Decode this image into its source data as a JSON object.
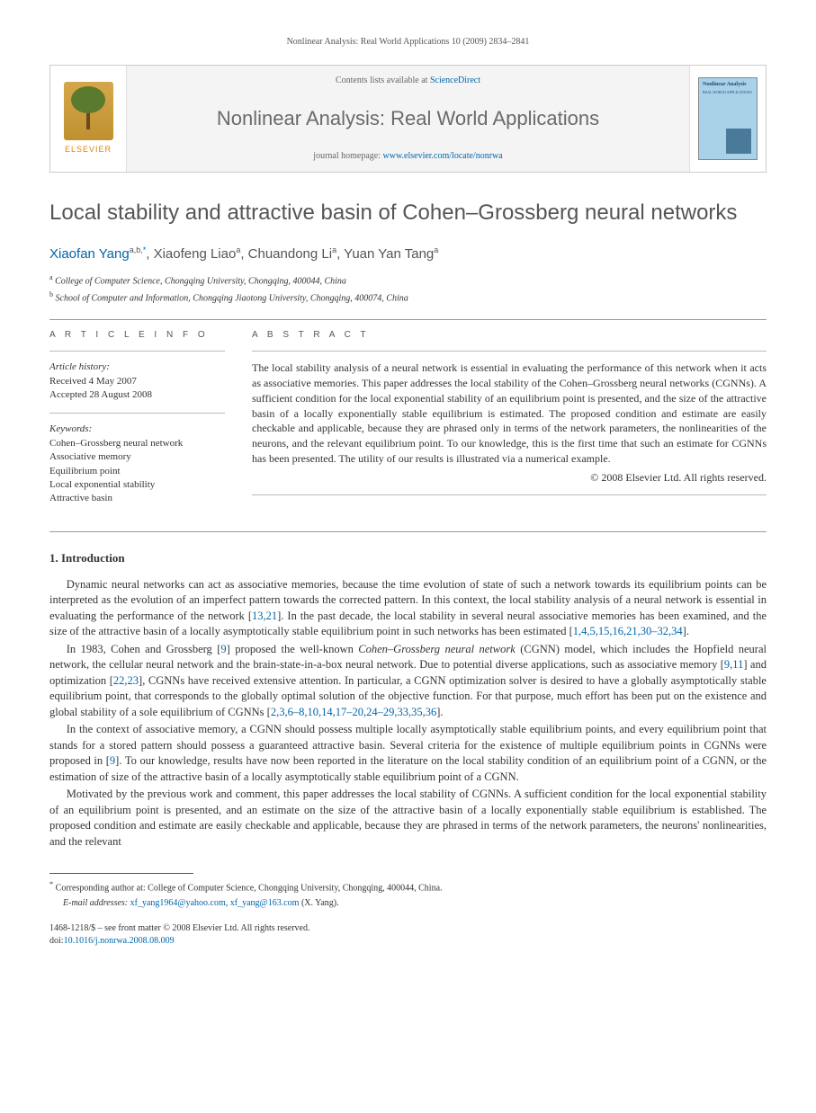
{
  "header": {
    "citation": "Nonlinear Analysis: Real World Applications 10 (2009) 2834–2841"
  },
  "banner": {
    "contents_prefix": "Contents lists available at ",
    "contents_link": "ScienceDirect",
    "journal": "Nonlinear Analysis: Real World Applications",
    "homepage_prefix": "journal homepage: ",
    "homepage_url": "www.elsevier.com/locate/nonrwa",
    "publisher_logo_text": "ELSEVIER",
    "cover_title": "Nonlinear Analysis",
    "cover_sub": "REAL WORLD APPLICATIONS"
  },
  "article": {
    "title": "Local stability and attractive basin of Cohen–Grossberg neural networks",
    "authors_html": "Xiaofan Yang",
    "author1_sup": "a,b,",
    "author1_star": "*",
    "author2": ", Xiaofeng Liao",
    "author2_sup": "a",
    "author3": ", Chuandong Li",
    "author3_sup": "a",
    "author4": ", Yuan Yan Tang",
    "author4_sup": "a",
    "affiliations": [
      {
        "sup": "a",
        "text": " College of Computer Science, Chongqing University, Chongqing, 400044, China"
      },
      {
        "sup": "b",
        "text": " School of Computer and Information, Chongqing Jiaotong University, Chongqing, 400074, China"
      }
    ]
  },
  "info": {
    "heading": "A R T I C L E   I N F O",
    "history_label": "Article history:",
    "received": "Received 4 May 2007",
    "accepted": "Accepted 28 August 2008",
    "keywords_label": "Keywords:",
    "keywords": [
      "Cohen–Grossberg neural network",
      "Associative memory",
      "Equilibrium point",
      "Local exponential stability",
      "Attractive basin"
    ]
  },
  "abstract": {
    "heading": "A B S T R A C T",
    "text": "The local stability analysis of a neural network is essential in evaluating the performance of this network when it acts as associative memories. This paper addresses the local stability of the Cohen–Grossberg neural networks (CGNNs). A sufficient condition for the local exponential stability of an equilibrium point is presented, and the size of the attractive basin of a locally exponentially stable equilibrium is estimated. The proposed condition and estimate are easily checkable and applicable, because they are phrased only in terms of the network parameters, the nonlinearities of the neurons, and the relevant equilibrium point. To our knowledge, this is the first time that such an estimate for CGNNs has been presented. The utility of our results is illustrated via a numerical example.",
    "copyright": "© 2008 Elsevier Ltd. All rights reserved."
  },
  "body": {
    "section1_heading": "1.  Introduction",
    "p1a": "Dynamic neural networks can act as associative memories, because the time evolution of state of such a network towards its equilibrium points can be interpreted as the evolution of an imperfect pattern towards the corrected pattern. In this context, the local stability analysis of a neural network is essential in evaluating the performance of the network [",
    "p1_ref1": "13,21",
    "p1b": "]. In the past decade, the local stability in several neural associative memories has been examined, and the size of the attractive basin of a locally asymptotically stable equilibrium point in such networks has been estimated [",
    "p1_ref2": "1,4,5,15,16,21,30–32,34",
    "p1c": "].",
    "p2a": "In 1983, Cohen and Grossberg [",
    "p2_ref1": "9",
    "p2b": "] proposed the well-known ",
    "p2_em": "Cohen–Grossberg neural network",
    "p2c": " (CGNN) model, which includes the Hopfield neural network, the cellular neural network and the brain-state-in-a-box neural network. Due to potential diverse applications, such as associative memory [",
    "p2_ref2": "9,11",
    "p2d": "] and optimization [",
    "p2_ref3": "22,23",
    "p2e": "], CGNNs have received extensive attention. In particular, a CGNN optimization solver is desired to have a globally asymptotically stable equilibrium point, that corresponds to the globally optimal solution of the objective function. For that purpose, much effort has been put on the existence and global stability of a sole equilibrium of CGNNs [",
    "p2_ref4": "2,3,6–8,10,14,17–20,24–29,33,35,36",
    "p2f": "].",
    "p3a": "In the context of associative memory, a CGNN should possess multiple locally asymptotically stable equilibrium points, and every equilibrium point that stands for a stored pattern should possess a guaranteed attractive basin. Several criteria for the existence of multiple equilibrium points in CGNNs were proposed in [",
    "p3_ref1": "9",
    "p3b": "]. To our knowledge, results have now been reported in the literature on the local stability condition of an equilibrium point of a CGNN, or the estimation of size of the attractive basin of a locally asymptotically stable equilibrium point of a CGNN.",
    "p4": "Motivated by the previous work and comment, this paper addresses the local stability of CGNNs. A sufficient condition for the local exponential stability of an equilibrium point is presented, and an estimate on the size of the attractive basin of a locally exponentially stable equilibrium is established. The proposed condition and estimate are easily checkable and applicable, because they are phrased in terms of the network parameters, the neurons' nonlinearities, and the relevant"
  },
  "footnotes": {
    "corr_star": "*",
    "corr": " Corresponding author at: College of Computer Science, Chongqing University, Chongqing, 400044, China.",
    "email_label": "E-mail addresses: ",
    "email1": "xf_yang1964@yahoo.com",
    "email_sep": ", ",
    "email2": "xf_yang@163.com",
    "email_tail": " (X. Yang)."
  },
  "bottom": {
    "issn_line": "1468-1218/$ – see front matter © 2008 Elsevier Ltd. All rights reserved.",
    "doi_label": "doi:",
    "doi": "10.1016/j.nonrwa.2008.08.009"
  },
  "colors": {
    "link": "#0066aa",
    "title_gray": "#555555",
    "banner_bg": "#f4f4f4"
  }
}
